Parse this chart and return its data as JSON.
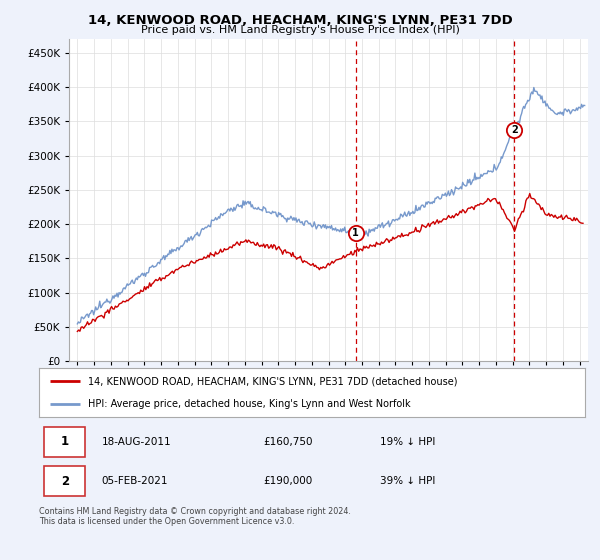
{
  "title": "14, KENWOOD ROAD, HEACHAM, KING'S LYNN, PE31 7DD",
  "subtitle": "Price paid vs. HM Land Registry's House Price Index (HPI)",
  "ytick_values": [
    0,
    50000,
    100000,
    150000,
    200000,
    250000,
    300000,
    350000,
    400000,
    450000
  ],
  "ylim": [
    0,
    470000
  ],
  "xlim_start": 1994.5,
  "xlim_end": 2025.5,
  "hpi_color": "#7799cc",
  "price_color": "#cc0000",
  "vline_color": "#cc0000",
  "sale1_year": 2011.625,
  "sale1_price": 160750,
  "sale2_year": 2021.09,
  "sale2_price": 190000,
  "legend_line1": "14, KENWOOD ROAD, HEACHAM, KING'S LYNN, PE31 7DD (detached house)",
  "legend_line2": "HPI: Average price, detached house, King's Lynn and West Norfolk",
  "footer": "Contains HM Land Registry data © Crown copyright and database right 2024.\nThis data is licensed under the Open Government Licence v3.0.",
  "background_color": "#eef2fb",
  "plot_bg_color": "#ffffff"
}
